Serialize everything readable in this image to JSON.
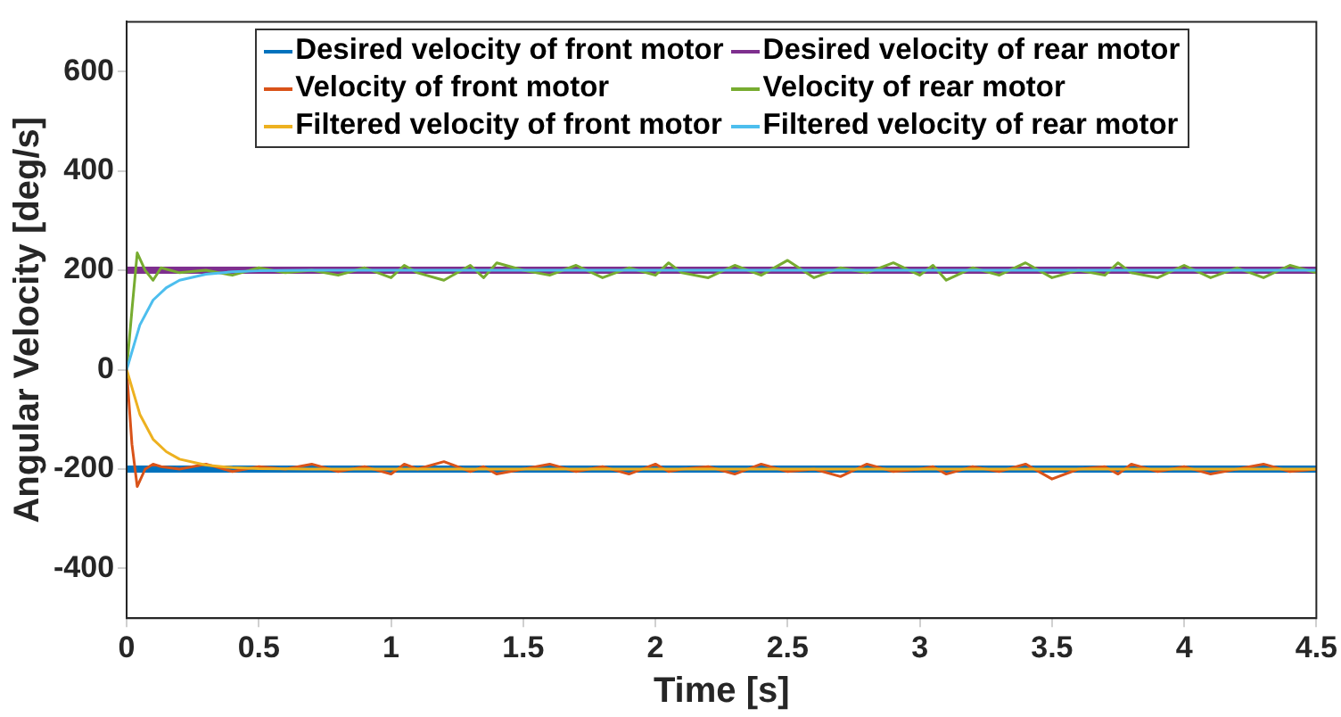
{
  "chart_data": {
    "type": "line",
    "xlabel": "Time [s]",
    "ylabel": "Angular Velocity [deg/s]",
    "xlim": [
      0,
      4.5
    ],
    "xticks": [
      0,
      0.5,
      1,
      1.5,
      2,
      2.5,
      3,
      3.5,
      4,
      4.5
    ],
    "ylim": [
      -500,
      700
    ],
    "yticks": [
      -400,
      -200,
      0,
      200,
      400,
      600
    ],
    "grid": false,
    "legend": "top",
    "marker": "none",
    "line_style": "solid",
    "series": [
      {
        "name": "Desired velocity of front motor",
        "color": "#0072bd",
        "x": [
          0,
          4.5
        ],
        "values": [
          -200,
          -200
        ]
      },
      {
        "name": "Desired velocity of rear motor",
        "color": "#7e2f8e",
        "x": [
          0,
          4.5
        ],
        "values": [
          200,
          200
        ]
      },
      {
        "name": "Velocity of front motor",
        "color": "#d95319",
        "x": [
          0,
          0.02,
          0.04,
          0.07,
          0.1,
          0.13,
          0.2,
          0.3,
          0.4,
          0.5,
          0.6,
          0.7,
          0.8,
          0.9,
          1.0,
          1.05,
          1.1,
          1.2,
          1.3,
          1.35,
          1.4,
          1.5,
          1.6,
          1.7,
          1.8,
          1.9,
          2.0,
          2.05,
          2.1,
          2.2,
          2.3,
          2.4,
          2.5,
          2.6,
          2.7,
          2.8,
          2.9,
          3.0,
          3.05,
          3.1,
          3.2,
          3.3,
          3.4,
          3.5,
          3.6,
          3.7,
          3.75,
          3.8,
          3.9,
          4.0,
          4.1,
          4.2,
          4.3,
          4.4,
          4.5
        ],
        "values": [
          0,
          -150,
          -235,
          -200,
          -190,
          -195,
          -200,
          -190,
          -205,
          -195,
          -200,
          -190,
          -205,
          -195,
          -210,
          -190,
          -200,
          -185,
          -205,
          -195,
          -210,
          -200,
          -190,
          -205,
          -195,
          -210,
          -190,
          -205,
          -200,
          -195,
          -210,
          -190,
          -205,
          -200,
          -215,
          -190,
          -205,
          -200,
          -195,
          -210,
          -195,
          -205,
          -190,
          -220,
          -200,
          -195,
          -210,
          -190,
          -205,
          -195,
          -210,
          -200,
          -190,
          -205,
          -200
        ]
      },
      {
        "name": "Velocity of rear motor",
        "color": "#77ac30",
        "x": [
          0,
          0.02,
          0.04,
          0.07,
          0.1,
          0.13,
          0.2,
          0.3,
          0.4,
          0.5,
          0.6,
          0.7,
          0.8,
          0.9,
          1.0,
          1.05,
          1.1,
          1.2,
          1.3,
          1.35,
          1.4,
          1.5,
          1.6,
          1.7,
          1.8,
          1.9,
          2.0,
          2.05,
          2.1,
          2.2,
          2.3,
          2.4,
          2.5,
          2.6,
          2.7,
          2.8,
          2.9,
          3.0,
          3.05,
          3.1,
          3.2,
          3.3,
          3.4,
          3.5,
          3.6,
          3.7,
          3.75,
          3.8,
          3.9,
          4.0,
          4.1,
          4.2,
          4.3,
          4.4,
          4.5
        ],
        "values": [
          0,
          120,
          235,
          200,
          180,
          205,
          195,
          200,
          190,
          205,
          195,
          200,
          190,
          205,
          185,
          210,
          195,
          180,
          210,
          185,
          215,
          200,
          190,
          210,
          185,
          205,
          190,
          215,
          195,
          185,
          210,
          190,
          220,
          185,
          205,
          195,
          215,
          190,
          210,
          180,
          205,
          190,
          215,
          185,
          200,
          190,
          215,
          195,
          185,
          210,
          185,
          205,
          185,
          210,
          195
        ]
      },
      {
        "name": "Filtered velocity of front motor",
        "color": "#edb120",
        "x": [
          0,
          0.05,
          0.1,
          0.15,
          0.2,
          0.3,
          0.4,
          0.5,
          0.7,
          1,
          1.5,
          2,
          2.5,
          3,
          3.5,
          4,
          4.5
        ],
        "values": [
          0,
          -90,
          -140,
          -165,
          -180,
          -192,
          -197,
          -199,
          -200,
          -200,
          -200,
          -200,
          -200,
          -200,
          -200,
          -200,
          -200
        ]
      },
      {
        "name": "Filtered velocity of rear motor",
        "color": "#4dbeee",
        "x": [
          0,
          0.05,
          0.1,
          0.15,
          0.2,
          0.3,
          0.4,
          0.5,
          0.7,
          1,
          1.5,
          2,
          2.5,
          3,
          3.5,
          4,
          4.5
        ],
        "values": [
          0,
          90,
          140,
          165,
          180,
          192,
          197,
          199,
          200,
          200,
          200,
          200,
          200,
          200,
          200,
          200,
          200
        ]
      }
    ]
  }
}
